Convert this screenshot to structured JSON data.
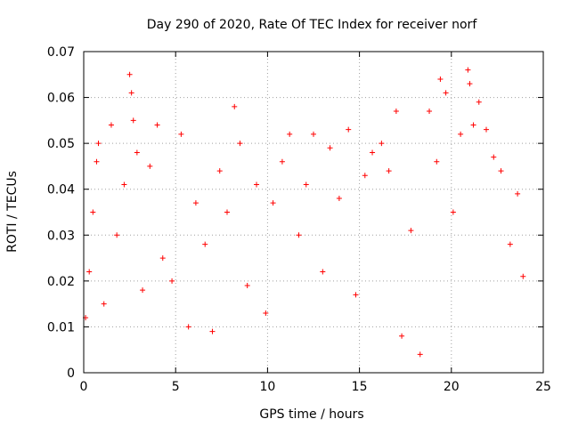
{
  "chart_data": {
    "type": "scatter",
    "title": "Day 290 of 2020, Rate Of TEC Index for receiver norf",
    "xlabel": "GPS time / hours",
    "ylabel": "ROTI / TECUs",
    "xlim": [
      0,
      25
    ],
    "ylim": [
      0,
      0.07
    ],
    "x_ticks": [
      "0",
      "5",
      "10",
      "15",
      "20",
      "25"
    ],
    "y_ticks": [
      "0",
      "0.01",
      "0.02",
      "0.03",
      "0.04",
      "0.05",
      "0.06",
      "0.07"
    ],
    "x_tick_values": [
      0,
      5,
      10,
      15,
      20,
      25
    ],
    "y_tick_values": [
      0,
      0.01,
      0.02,
      0.03,
      0.04,
      0.05,
      0.06,
      0.07
    ],
    "grid": true,
    "marker": "+",
    "color": "#ff0000",
    "series": [
      {
        "x": [
          0.1,
          0.3,
          0.5,
          0.7,
          0.8,
          1.1,
          1.5,
          1.8,
          2.2,
          2.5,
          2.6,
          2.7,
          2.9,
          3.2,
          3.6,
          4.0,
          4.3,
          4.8,
          5.3,
          5.7,
          6.1,
          6.6,
          7.0,
          7.4,
          7.8,
          8.2,
          8.5,
          8.9,
          9.4,
          9.9,
          10.3,
          10.8,
          11.2,
          11.7,
          12.1,
          12.5,
          13.0,
          13.4,
          13.9,
          14.4,
          14.8,
          15.3,
          15.7,
          16.2,
          16.6,
          17.0,
          17.3,
          17.8,
          18.3,
          18.8,
          19.2,
          19.4,
          19.7,
          20.1,
          20.5,
          20.9,
          21.0,
          21.2,
          21.5,
          21.9,
          22.3,
          22.7,
          23.2,
          23.6,
          23.9
        ],
        "y": [
          0.012,
          0.022,
          0.035,
          0.046,
          0.05,
          0.015,
          0.054,
          0.03,
          0.041,
          0.065,
          0.061,
          0.055,
          0.048,
          0.018,
          0.045,
          0.054,
          0.025,
          0.02,
          0.052,
          0.01,
          0.037,
          0.028,
          0.009,
          0.044,
          0.035,
          0.058,
          0.05,
          0.019,
          0.041,
          0.013,
          0.037,
          0.046,
          0.052,
          0.03,
          0.041,
          0.052,
          0.022,
          0.049,
          0.038,
          0.053,
          0.017,
          0.043,
          0.048,
          0.05,
          0.044,
          0.057,
          0.008,
          0.031,
          0.004,
          0.057,
          0.046,
          0.064,
          0.061,
          0.035,
          0.052,
          0.066,
          0.063,
          0.054,
          0.059,
          0.053,
          0.047,
          0.044,
          0.028,
          0.039,
          0.021
        ]
      }
    ]
  }
}
